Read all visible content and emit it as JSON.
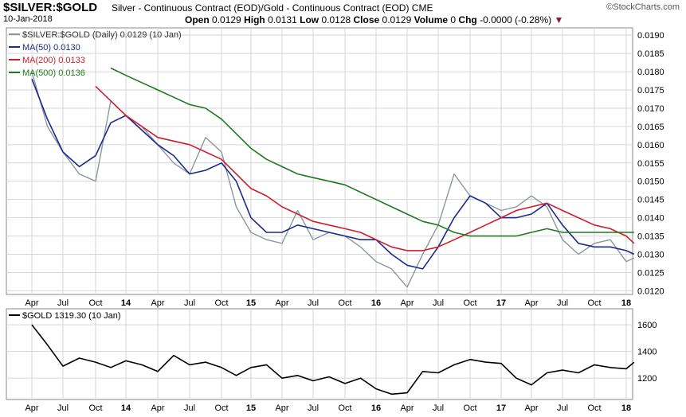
{
  "header": {
    "symbol": "$SILVER:$GOLD",
    "description": "Silver - Continuous Contract (EOD)/Gold - Continuous Contract (EOD) CME",
    "copyright": "©StockCharts.com",
    "date": "10-Jan-2018",
    "open_label": "Open",
    "open": "0.0129",
    "high_label": "High",
    "high": "0.0131",
    "low_label": "Low",
    "low": "0.0128",
    "close_label": "Close",
    "close": "0.0129",
    "volume_label": "Volume",
    "volume": "0",
    "chg_label": "Chg",
    "chg": "-0.0000 (-0.28%)",
    "chg_arrow": "▼"
  },
  "colors": {
    "price": "#8c96a0",
    "ma50": "#1c2a8c",
    "ma200": "#d01c2c",
    "ma500": "#1e7a1e",
    "gold": "#000000",
    "grid": "#d6d6d6",
    "frame": "#8a8a8a"
  },
  "chart_data": [
    {
      "type": "line",
      "panel": "upper",
      "legend": [
        {
          "key": "price",
          "label": "$SILVER:$GOLD (Daily) 0.0129 (10 Jan)"
        },
        {
          "key": "ma50",
          "label": "MA(50) 0.0130"
        },
        {
          "key": "ma200",
          "label": "MA(200) 0.0133"
        },
        {
          "key": "ma500",
          "label": "MA(500) 0.0136"
        }
      ],
      "legend_position": "top-left",
      "x_ticks": [
        "Apr",
        "Jul",
        "Oct",
        "14",
        "Apr",
        "Jul",
        "Oct",
        "15",
        "Apr",
        "Jul",
        "Oct",
        "16",
        "Apr",
        "Jul",
        "Oct",
        "17",
        "Apr",
        "Jul",
        "Oct",
        "18"
      ],
      "y_ticks": [
        "0.0120",
        "0.0125",
        "0.0130",
        "0.0135",
        "0.0140",
        "0.0145",
        "0.0150",
        "0.0155",
        "0.0160",
        "0.0165",
        "0.0170",
        "0.0175",
        "0.0180",
        "0.0185",
        "0.0190"
      ],
      "ylim": [
        0.0119,
        0.0192
      ],
      "grid": true,
      "x": [
        0,
        0.5,
        1,
        1.5,
        2,
        2.5,
        3,
        3.5,
        4,
        4.5,
        5,
        5.5,
        6,
        6.5,
        7,
        7.5,
        8,
        8.5,
        9,
        9.5,
        10,
        10.5,
        11,
        11.5,
        12,
        12.5,
        13,
        13.5,
        14,
        14.5,
        15,
        15.5,
        16,
        16.5,
        17,
        17.5,
        18,
        18.5,
        19,
        19.25
      ],
      "series": [
        {
          "key": "price",
          "values": [
            0.018,
            0.0165,
            0.0158,
            0.0152,
            0.015,
            0.0172,
            0.0168,
            0.0165,
            0.016,
            0.0155,
            0.0152,
            0.0162,
            0.0158,
            0.0143,
            0.0136,
            0.0134,
            0.0133,
            0.0142,
            0.0134,
            0.0136,
            0.0135,
            0.0132,
            0.0128,
            0.0126,
            0.0121,
            0.013,
            0.0138,
            0.0152,
            0.0146,
            0.0144,
            0.0142,
            0.0143,
            0.0146,
            0.0143,
            0.0134,
            0.013,
            0.0133,
            0.0134,
            0.0128,
            0.0129
          ]
        },
        {
          "key": "ma50",
          "values": [
            0.0178,
            0.0167,
            0.0158,
            0.0154,
            0.0157,
            0.0166,
            0.0168,
            0.0164,
            0.016,
            0.0157,
            0.0152,
            0.0153,
            0.0155,
            0.015,
            0.014,
            0.0136,
            0.0136,
            0.0138,
            0.0137,
            0.0136,
            0.0135,
            0.0134,
            0.0134,
            0.013,
            0.0127,
            0.0126,
            0.0132,
            0.014,
            0.0146,
            0.0144,
            0.014,
            0.014,
            0.0141,
            0.0144,
            0.0138,
            0.0133,
            0.0132,
            0.0132,
            0.0131,
            0.013
          ]
        },
        {
          "key": "ma200",
          "values": [
            null,
            null,
            null,
            null,
            0.0176,
            0.0172,
            0.0168,
            0.0165,
            0.0162,
            0.0161,
            0.016,
            0.0158,
            0.0156,
            0.0152,
            0.0148,
            0.0146,
            0.0143,
            0.0141,
            0.0139,
            0.0138,
            0.0137,
            0.0136,
            0.0134,
            0.0132,
            0.0131,
            0.0131,
            0.0132,
            0.0134,
            0.0136,
            0.0138,
            0.014,
            0.0142,
            0.0143,
            0.0144,
            0.0142,
            0.014,
            0.0138,
            0.0137,
            0.0135,
            0.0133
          ]
        },
        {
          "key": "ma500",
          "values": [
            null,
            null,
            null,
            null,
            null,
            0.0181,
            0.0179,
            0.0177,
            0.0175,
            0.0173,
            0.0171,
            0.017,
            0.0167,
            0.0163,
            0.0159,
            0.0156,
            0.0154,
            0.0152,
            0.0151,
            0.015,
            0.0149,
            0.0147,
            0.0145,
            0.0143,
            0.0141,
            0.0139,
            0.0138,
            0.0136,
            0.0135,
            0.0135,
            0.0135,
            0.0135,
            0.0136,
            0.0137,
            0.0136,
            0.0136,
            0.0136,
            0.0136,
            0.0136,
            0.0136
          ]
        }
      ]
    },
    {
      "type": "line",
      "panel": "lower",
      "legend": [
        {
          "key": "gold",
          "label": "$GOLD 1319.30 (10 Jan)"
        }
      ],
      "legend_position": "top-left",
      "x_ticks": [
        "Apr",
        "Jul",
        "Oct",
        "14",
        "Apr",
        "Jul",
        "Oct",
        "15",
        "Apr",
        "Jul",
        "Oct",
        "16",
        "Apr",
        "Jul",
        "Oct",
        "17",
        "Apr",
        "Jul",
        "Oct",
        "18"
      ],
      "y_ticks": [
        "1200",
        "1400",
        "1600"
      ],
      "ylim": [
        1040,
        1720
      ],
      "grid": true,
      "x": [
        0,
        0.5,
        1,
        1.5,
        2,
        2.5,
        3,
        3.5,
        4,
        4.5,
        5,
        5.5,
        6,
        6.5,
        7,
        7.5,
        8,
        8.5,
        9,
        9.5,
        10,
        10.5,
        11,
        11.5,
        12,
        12.5,
        13,
        13.5,
        14,
        14.5,
        15,
        15.5,
        16,
        16.5,
        17,
        17.5,
        18,
        18.5,
        19,
        19.25
      ],
      "series": [
        {
          "key": "gold",
          "values": [
            1600,
            1450,
            1290,
            1350,
            1320,
            1280,
            1330,
            1300,
            1250,
            1370,
            1300,
            1320,
            1280,
            1220,
            1280,
            1300,
            1200,
            1220,
            1180,
            1210,
            1160,
            1200,
            1120,
            1080,
            1090,
            1250,
            1240,
            1300,
            1340,
            1320,
            1310,
            1200,
            1150,
            1240,
            1260,
            1240,
            1300,
            1280,
            1270,
            1319
          ]
        }
      ]
    }
  ]
}
